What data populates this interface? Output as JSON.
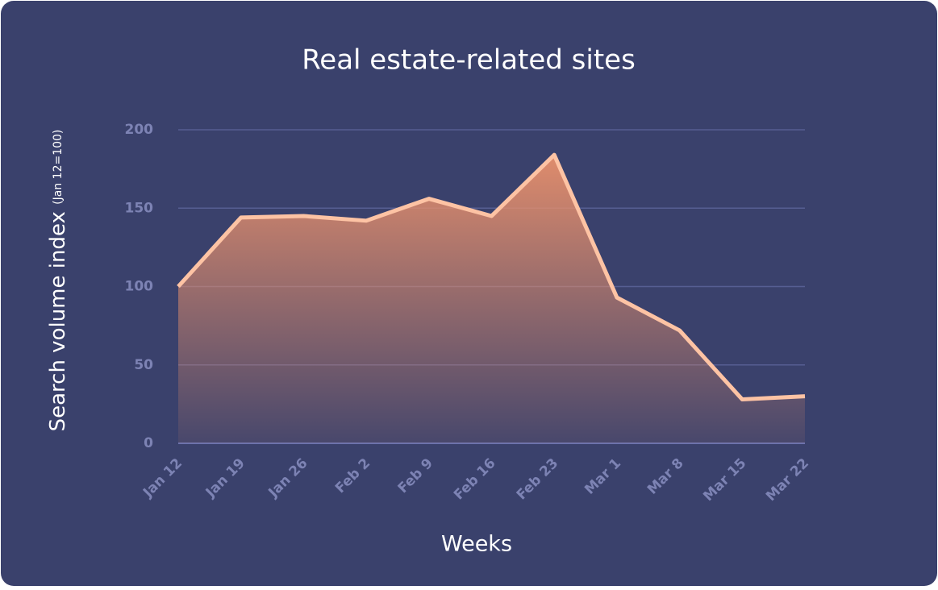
{
  "chart_data": {
    "type": "area",
    "title": "Real estate-related sites",
    "ylabel": "Search volume index",
    "ylabel_note": "(Jan 12=100)",
    "xlabel": "Weeks",
    "categories": [
      "Jan 12",
      "Jan 19",
      "Jan 26",
      "Feb 2",
      "Feb 9",
      "Feb 16",
      "Feb 23",
      "Mar 1",
      "Mar 8",
      "Mar 15",
      "Mar 22"
    ],
    "values": [
      100,
      144,
      145,
      142,
      156,
      145,
      184,
      93,
      72,
      28,
      30
    ],
    "color": "#fdc3a4",
    "fill_color": "#e8906c",
    "ylim": [
      0,
      200
    ],
    "yticks": [
      0,
      50,
      100,
      150,
      200
    ],
    "grid": true
  }
}
